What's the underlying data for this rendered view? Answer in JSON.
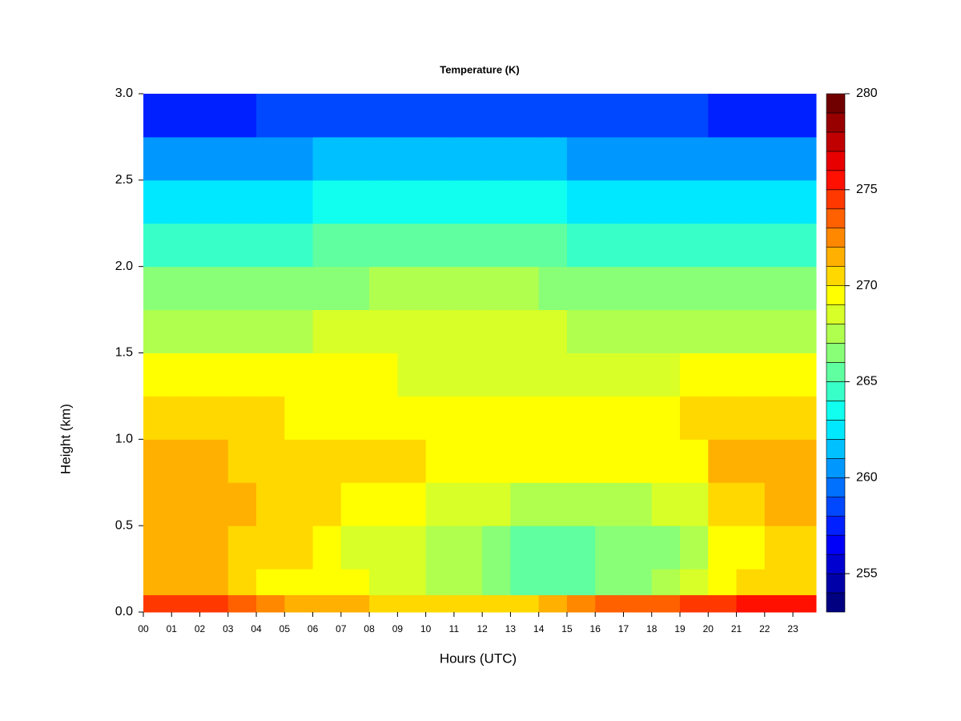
{
  "chart_data": {
    "type": "heatmap",
    "title": "Temperature (K)",
    "xlabel": "Hours (UTC)",
    "ylabel": "Height (km)",
    "xlim": [
      0,
      23.82
    ],
    "ylim": [
      0,
      3.0
    ],
    "xticks": [
      {
        "value": 0,
        "label": "00"
      },
      {
        "value": 1,
        "label": "01"
      },
      {
        "value": 2,
        "label": "02"
      },
      {
        "value": 3,
        "label": "03"
      },
      {
        "value": 4,
        "label": "04"
      },
      {
        "value": 5,
        "label": "05"
      },
      {
        "value": 6,
        "label": "06"
      },
      {
        "value": 7,
        "label": "07"
      },
      {
        "value": 8,
        "label": "08"
      },
      {
        "value": 9,
        "label": "09"
      },
      10,
      11,
      12,
      13,
      14,
      15,
      16,
      17,
      18,
      19,
      20,
      21,
      22,
      23
    ],
    "yticks": [
      {
        "value": 0,
        "label": "0.0"
      },
      0.5,
      {
        "value": 1,
        "label": "1.0"
      },
      1.5,
      {
        "value": 2,
        "label": "2.0"
      },
      2.5,
      {
        "value": 3,
        "label": "3.0"
      }
    ],
    "x_bins": [
      0,
      1,
      2,
      3,
      4,
      5,
      6,
      7,
      8,
      9,
      10,
      11,
      12,
      13,
      14,
      15,
      16,
      17,
      18,
      19,
      20,
      21,
      22,
      23,
      23.82
    ],
    "y_bins": [
      0,
      0.1,
      0.25,
      0.5,
      0.75,
      1.0,
      1.25,
      1.5,
      1.75,
      2.0,
      2.25,
      2.5,
      2.75,
      3.0
    ],
    "z": [
      [
        274,
        274,
        274,
        273,
        272,
        271,
        271,
        271,
        270,
        270,
        270,
        270,
        270,
        270,
        271,
        272,
        273,
        273,
        273,
        274,
        274,
        275,
        275,
        275
      ],
      [
        271,
        271,
        271,
        270,
        269,
        269,
        269,
        269,
        268,
        268,
        267,
        267,
        266,
        265,
        265,
        265,
        266,
        266,
        267,
        268,
        269,
        270,
        270,
        270
      ],
      [
        271,
        271,
        271,
        270,
        270,
        270,
        269,
        268,
        268,
        268,
        267,
        267,
        266,
        265,
        265,
        265,
        266,
        266,
        266,
        267,
        269,
        269,
        270,
        270
      ],
      [
        271,
        271,
        271,
        271,
        270,
        270,
        270,
        269,
        269,
        269,
        268,
        268,
        268,
        267,
        267,
        267,
        267,
        267,
        268,
        268,
        270,
        270,
        271,
        271
      ],
      [
        271,
        271,
        271,
        270,
        270,
        270,
        270,
        270,
        270,
        270,
        269,
        269,
        269,
        269,
        269,
        269,
        269,
        269,
        269,
        269,
        271,
        271,
        271,
        271
      ],
      [
        270,
        270,
        270,
        270,
        270,
        269,
        269,
        269,
        269,
        269,
        269,
        269,
        269,
        269,
        269,
        269,
        269,
        269,
        269,
        270,
        270,
        270,
        270,
        270
      ],
      [
        269,
        269,
        269,
        269,
        269,
        269,
        269,
        269,
        269,
        268,
        268,
        268,
        268,
        268,
        268,
        268,
        268,
        268,
        268,
        269,
        269,
        269,
        269,
        269
      ],
      [
        267,
        267,
        267,
        267,
        267,
        267,
        268,
        268,
        268,
        268,
        268,
        268,
        268,
        268,
        268,
        267,
        267,
        267,
        267,
        267,
        267,
        267,
        267,
        267
      ],
      [
        266,
        266,
        266,
        266,
        266,
        266,
        266,
        266,
        267,
        267,
        267,
        267,
        267,
        267,
        266,
        266,
        266,
        266,
        266,
        266,
        266,
        266,
        266,
        266
      ],
      [
        264,
        264,
        264,
        264,
        264,
        264,
        265,
        265,
        265,
        265,
        265,
        265,
        265,
        265,
        265,
        264,
        264,
        264,
        264,
        264,
        264,
        264,
        264,
        264
      ],
      [
        262,
        262,
        262,
        262,
        262,
        262,
        263,
        263,
        263,
        263,
        263,
        263,
        263,
        263,
        263,
        262,
        262,
        262,
        262,
        262,
        262,
        262,
        262,
        262
      ],
      [
        260,
        260,
        260,
        260,
        260,
        260,
        261,
        261,
        261,
        261,
        261,
        261,
        261,
        261,
        261,
        260,
        260,
        260,
        260,
        260,
        260,
        260,
        260,
        260
      ],
      [
        257,
        257,
        257,
        257,
        258,
        258,
        258,
        258,
        258,
        258,
        258,
        258,
        258,
        258,
        258,
        258,
        258,
        258,
        258,
        258,
        257,
        257,
        257,
        257
      ]
    ],
    "colorbar": {
      "levels": [
        253,
        254,
        255,
        256,
        257,
        258,
        259,
        260,
        261,
        262,
        263,
        264,
        265,
        266,
        267,
        268,
        269,
        270,
        271,
        272,
        273,
        274,
        275,
        276,
        277,
        278,
        279,
        280
      ],
      "colors": [
        "#000080",
        "#0000A8",
        "#0000D0",
        "#0000F8",
        "#0020FF",
        "#0048FF",
        "#0070FF",
        "#0098FF",
        "#00C0FF",
        "#00E8FF",
        "#10FFEF",
        "#38FFC7",
        "#60FF9F",
        "#88FF77",
        "#B0FF4F",
        "#D8FF27",
        "#FFFF00",
        "#FFD800",
        "#FFB000",
        "#FF8800",
        "#FF6000",
        "#FF3800",
        "#FF1000",
        "#E80000",
        "#C00000",
        "#980000",
        "#700000"
      ],
      "ticks": [
        255,
        260,
        265,
        270,
        275,
        280
      ]
    }
  }
}
